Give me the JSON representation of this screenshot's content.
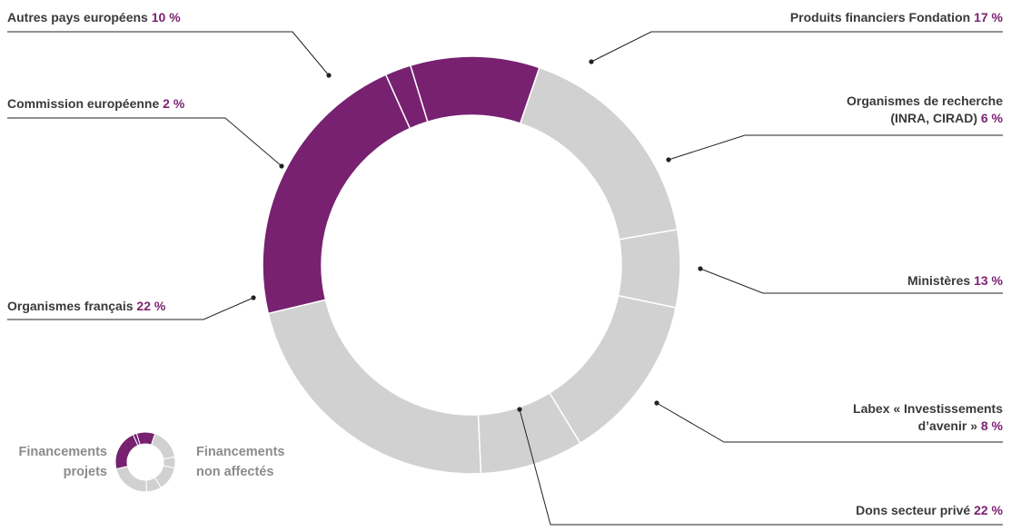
{
  "colors": {
    "projets": "#772170",
    "non_affectes": "#d1d1d1",
    "label_text": "#3a3a3a",
    "value_text": "#7b2272",
    "legend_text": "#8c8c8c",
    "leader_line": "#222222"
  },
  "chart_data": {
    "type": "pie",
    "donut": true,
    "unit": "%",
    "slices": [
      {
        "name": "Autres pays européens",
        "value": 10,
        "value_label": "10 %",
        "group": "projets"
      },
      {
        "name": "Produits financiers Fondation",
        "value": 17,
        "value_label": "17 %",
        "group": "non_affectes"
      },
      {
        "name": "Organismes de recherche (INRA, CIRAD)",
        "name_lines": [
          "Organismes de recherche",
          "(INRA, CIRAD)"
        ],
        "value": 6,
        "value_label": "6 %",
        "group": "non_affectes"
      },
      {
        "name": "Ministères",
        "value": 13,
        "value_label": "13 %",
        "group": "non_affectes"
      },
      {
        "name": "Labex « Investissements d’avenir »",
        "name_lines": [
          "Labex « Investissements",
          "d’avenir »"
        ],
        "value": 8,
        "value_label": "8 %",
        "group": "non_affectes"
      },
      {
        "name": "Dons  secteur privé",
        "value": 22,
        "value_label": "22 %",
        "group": "non_affectes"
      },
      {
        "name": "Organismes français",
        "value": 22,
        "value_label": "22 %",
        "group": "projets"
      },
      {
        "name": "Commission européenne",
        "value": 2,
        "value_label": "2 %",
        "group": "projets"
      }
    ],
    "legend": {
      "projets": [
        "Financements",
        "projets"
      ],
      "non_affectes": [
        "Financements",
        "non affectés"
      ]
    }
  }
}
